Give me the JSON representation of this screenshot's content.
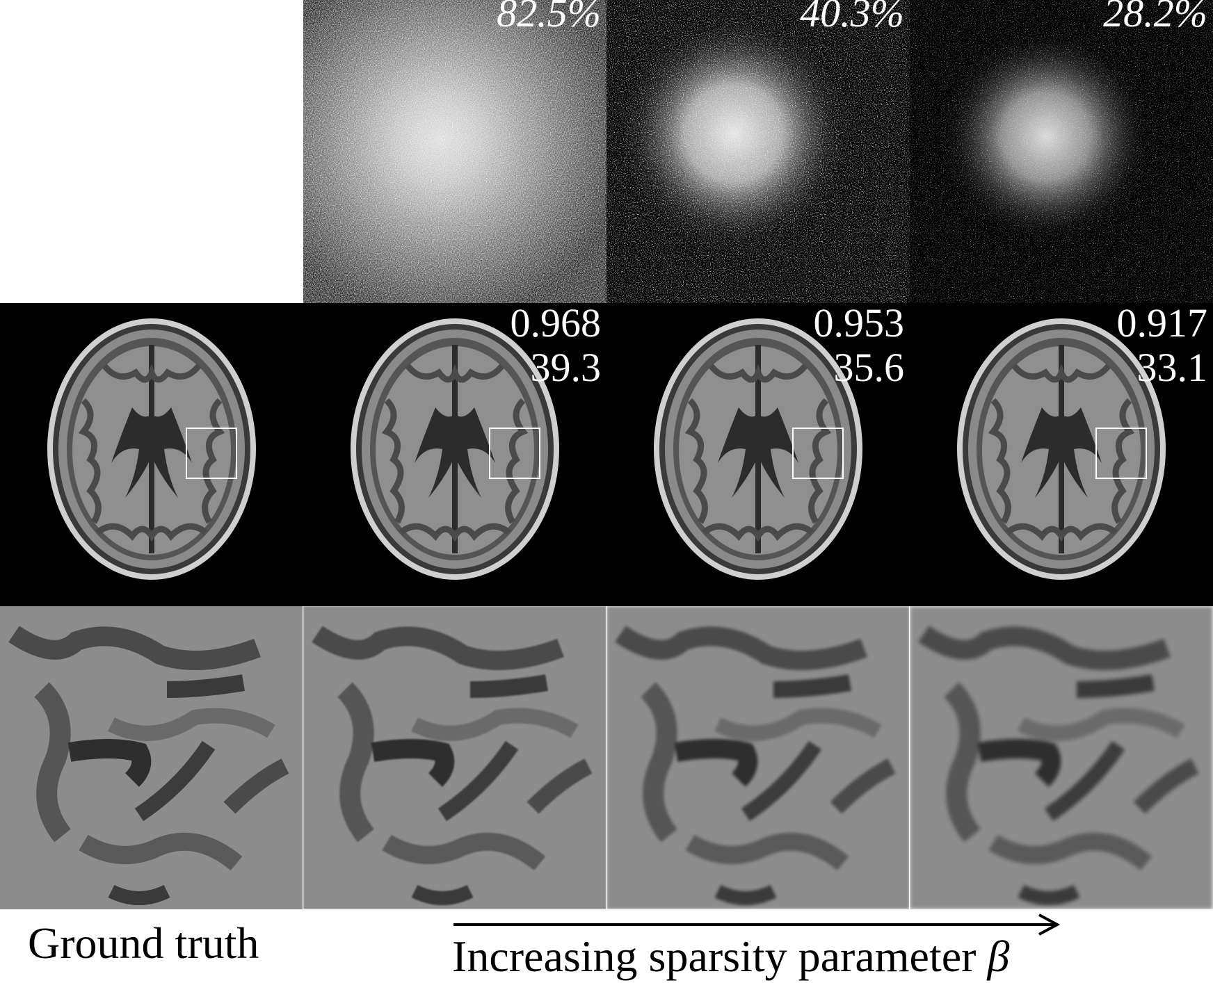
{
  "figure": {
    "mask_panels": [
      {
        "percent": "82.5%"
      },
      {
        "percent": "40.3%"
      },
      {
        "percent": "28.2%"
      }
    ],
    "reconstructions": [
      {
        "metric_top": "0.968",
        "metric_bottom": "39.3"
      },
      {
        "metric_top": "0.953",
        "metric_bottom": "35.6"
      },
      {
        "metric_top": "0.917",
        "metric_bottom": "33.1"
      }
    ],
    "caption_left": "Ground truth",
    "caption_right": "Increasing sparsity parameter",
    "caption_symbol": "β"
  }
}
